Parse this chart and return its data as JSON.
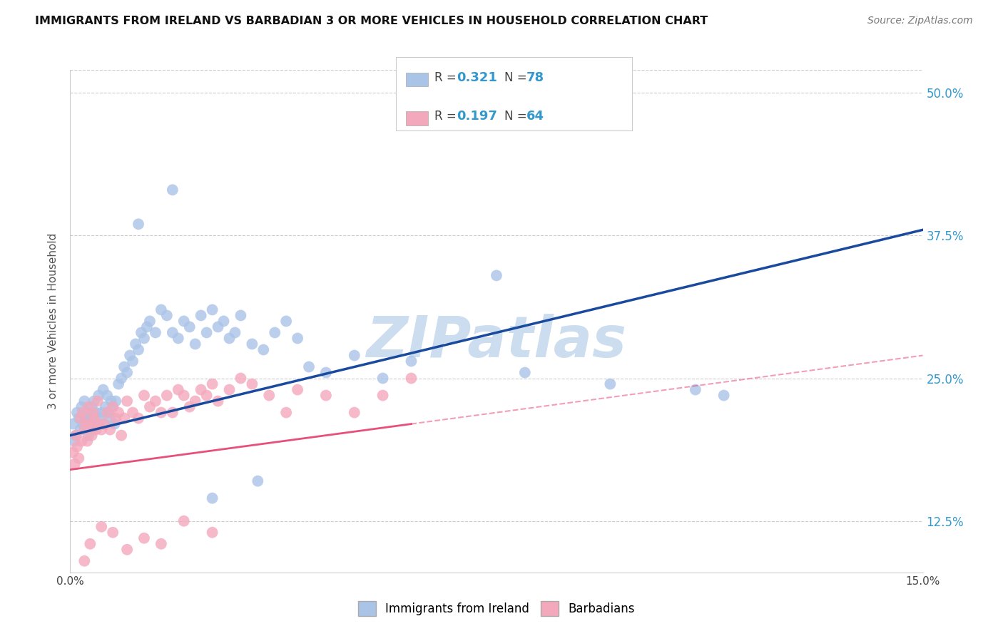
{
  "title": "IMMIGRANTS FROM IRELAND VS BARBADIAN 3 OR MORE VEHICLES IN HOUSEHOLD CORRELATION CHART",
  "source_text": "Source: ZipAtlas.com",
  "ylabel": "3 or more Vehicles in Household",
  "x_min": 0.0,
  "x_max": 15.0,
  "y_min": 8.0,
  "y_max": 52.0,
  "y_ticks": [
    12.5,
    25.0,
    37.5,
    50.0
  ],
  "y_tick_labels": [
    "12.5%",
    "25.0%",
    "37.5%",
    "50.0%"
  ],
  "r_ireland": 0.321,
  "n_ireland": 78,
  "r_barbadian": 0.197,
  "n_barbadian": 64,
  "color_ireland": "#aac4e8",
  "color_barbadian": "#f4a8bc",
  "line_color_ireland": "#1a4a9e",
  "line_color_barbadian": "#e8507a",
  "watermark_text": "ZIPatlas",
  "watermark_color": "#ccddef",
  "background_color": "#ffffff",
  "grid_color": "#cccccc",
  "ireland_x": [
    0.05,
    0.08,
    0.1,
    0.12,
    0.15,
    0.18,
    0.2,
    0.22,
    0.25,
    0.28,
    0.3,
    0.32,
    0.35,
    0.38,
    0.4,
    0.42,
    0.45,
    0.48,
    0.5,
    0.52,
    0.55,
    0.58,
    0.6,
    0.62,
    0.65,
    0.68,
    0.7,
    0.72,
    0.75,
    0.78,
    0.8,
    0.85,
    0.9,
    0.95,
    1.0,
    1.05,
    1.1,
    1.15,
    1.2,
    1.25,
    1.3,
    1.35,
    1.4,
    1.5,
    1.6,
    1.7,
    1.8,
    1.9,
    2.0,
    2.1,
    2.2,
    2.3,
    2.4,
    2.5,
    2.6,
    2.7,
    2.8,
    2.9,
    3.0,
    3.2,
    3.4,
    3.6,
    3.8,
    4.0,
    4.2,
    4.5,
    5.0,
    5.5,
    6.0,
    7.5,
    8.0,
    9.5,
    11.0,
    11.5,
    1.2,
    1.8,
    2.5,
    3.3
  ],
  "ireland_y": [
    21.0,
    19.5,
    20.0,
    22.0,
    21.5,
    20.5,
    22.5,
    21.0,
    23.0,
    21.5,
    22.0,
    20.0,
    21.5,
    22.5,
    20.5,
    23.0,
    22.0,
    21.0,
    23.5,
    21.5,
    22.0,
    24.0,
    21.0,
    22.5,
    23.5,
    22.0,
    21.5,
    23.0,
    22.5,
    21.0,
    23.0,
    24.5,
    25.0,
    26.0,
    25.5,
    27.0,
    26.5,
    28.0,
    27.5,
    29.0,
    28.5,
    29.5,
    30.0,
    29.0,
    31.0,
    30.5,
    29.0,
    28.5,
    30.0,
    29.5,
    28.0,
    30.5,
    29.0,
    31.0,
    29.5,
    30.0,
    28.5,
    29.0,
    30.5,
    28.0,
    27.5,
    29.0,
    30.0,
    28.5,
    26.0,
    25.5,
    27.0,
    25.0,
    26.5,
    34.0,
    25.5,
    24.5,
    24.0,
    23.5,
    38.5,
    41.5,
    14.5,
    16.0
  ],
  "barbadian_x": [
    0.05,
    0.08,
    0.1,
    0.12,
    0.15,
    0.18,
    0.2,
    0.22,
    0.25,
    0.28,
    0.3,
    0.32,
    0.35,
    0.38,
    0.4,
    0.42,
    0.45,
    0.48,
    0.5,
    0.55,
    0.6,
    0.65,
    0.7,
    0.75,
    0.8,
    0.85,
    0.9,
    0.95,
    1.0,
    1.1,
    1.2,
    1.3,
    1.4,
    1.5,
    1.6,
    1.7,
    1.8,
    1.9,
    2.0,
    2.1,
    2.2,
    2.3,
    2.4,
    2.5,
    2.6,
    2.8,
    3.0,
    3.2,
    3.5,
    3.8,
    4.0,
    4.5,
    5.0,
    5.5,
    6.0,
    0.25,
    0.35,
    0.55,
    0.75,
    1.0,
    1.3,
    1.6,
    2.0,
    2.5
  ],
  "barbadian_y": [
    18.5,
    17.5,
    20.0,
    19.0,
    18.0,
    21.5,
    19.5,
    22.0,
    20.5,
    21.0,
    19.5,
    22.5,
    21.0,
    20.0,
    22.0,
    21.5,
    20.5,
    23.0,
    21.0,
    20.5,
    21.0,
    22.0,
    20.5,
    22.5,
    21.5,
    22.0,
    20.0,
    21.5,
    23.0,
    22.0,
    21.5,
    23.5,
    22.5,
    23.0,
    22.0,
    23.5,
    22.0,
    24.0,
    23.5,
    22.5,
    23.0,
    24.0,
    23.5,
    24.5,
    23.0,
    24.0,
    25.0,
    24.5,
    23.5,
    22.0,
    24.0,
    23.5,
    22.0,
    23.5,
    25.0,
    9.0,
    10.5,
    12.0,
    11.5,
    10.0,
    11.0,
    10.5,
    12.5,
    11.5
  ],
  "blue_line_x0": 0.0,
  "blue_line_y0": 20.0,
  "blue_line_x1": 15.0,
  "blue_line_y1": 38.0,
  "pink_line_x0": 0.0,
  "pink_line_y0": 17.0,
  "pink_line_x1": 15.0,
  "pink_line_y1": 27.0,
  "pink_solid_end": 6.0,
  "pink_dash_start": 6.0
}
